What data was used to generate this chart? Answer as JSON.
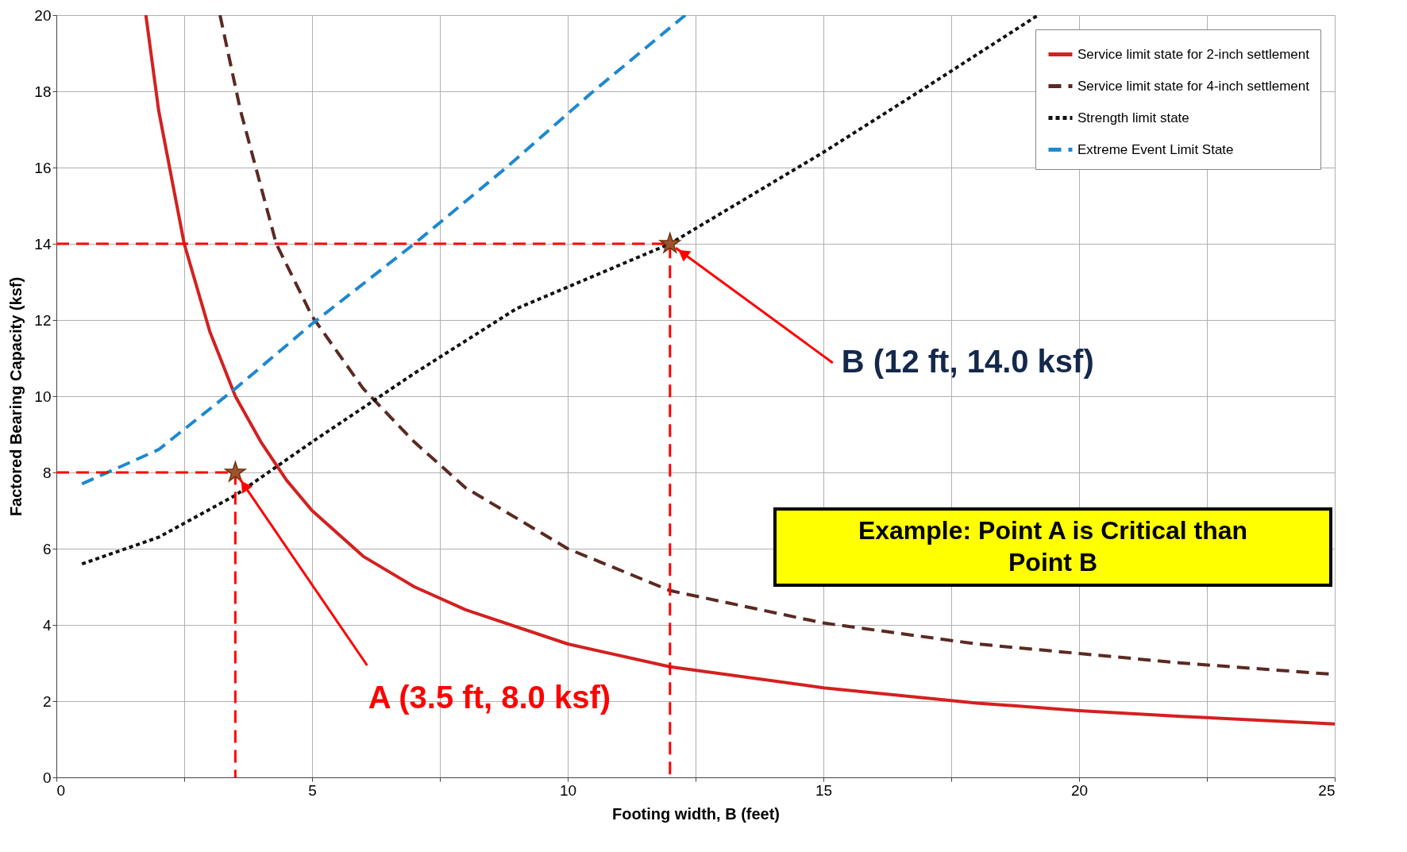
{
  "chart_data": {
    "type": "line",
    "xlabel": "Footing width, B (feet)",
    "ylabel": "Factored Bearing Capacity (ksf)",
    "xlim": [
      0,
      25
    ],
    "ylim": [
      0,
      20
    ],
    "xticks": [
      0,
      {
        "value": 2.5,
        "label": null
      },
      5,
      {
        "value": 7.5,
        "label": null
      },
      10,
      {
        "value": 12.5,
        "label": null
      },
      15,
      {
        "value": 17.5,
        "label": null
      },
      20,
      {
        "value": 22.5,
        "label": null
      },
      25
    ],
    "yticks": [
      0,
      2,
      4,
      6,
      8,
      10,
      12,
      14,
      16,
      18,
      20
    ],
    "grid": true,
    "legend": "top right",
    "series": [
      {
        "name": "Service limit state for 2-inch settlement",
        "color": "#d42020",
        "line_style": "solid",
        "x": [
          1.75,
          2,
          2.5,
          3,
          3.5,
          4,
          4.5,
          5,
          6,
          7,
          8,
          10,
          12,
          15,
          18,
          20,
          22,
          25
        ],
        "values": [
          20,
          17.5,
          14,
          11.7,
          10,
          8.8,
          7.8,
          7,
          5.8,
          5,
          4.4,
          3.5,
          2.9,
          2.35,
          1.95,
          1.75,
          1.6,
          1.4
        ]
      },
      {
        "name": "Service limit state for 4-inch settlement",
        "color": "#5a2a22",
        "line_style": "dashed",
        "x": [
          3.2,
          3.6,
          4.3,
          5,
          6,
          7,
          8,
          10,
          12,
          15,
          18,
          20,
          22,
          25
        ],
        "values": [
          20,
          17.5,
          14,
          12.1,
          10.2,
          8.8,
          7.6,
          6,
          4.9,
          4.05,
          3.5,
          3.25,
          3,
          2.7
        ]
      },
      {
        "name": "Strength limit state",
        "color": "#111111",
        "line_style": "dotted",
        "x": [
          0.5,
          2,
          3.5,
          5,
          7,
          9,
          12,
          15,
          17,
          19.2
        ],
        "values": [
          5.6,
          6.3,
          7.4,
          8.8,
          10.6,
          12.3,
          14,
          16.4,
          18.1,
          20
        ]
      },
      {
        "name": "Extreme Event Limit State",
        "color": "#1e88d0",
        "line_style": "dashed",
        "x": [
          0.5,
          2,
          3.5,
          5,
          7,
          8.8,
          10.5,
          12.3
        ],
        "values": [
          7.7,
          8.6,
          10.2,
          11.9,
          14,
          16,
          18,
          20
        ]
      },
      {
        "type": "line",
        "color": "#ff0000",
        "line_style": "dashed",
        "x": [
          0,
          3.5,
          3.5
        ],
        "values": [
          8,
          8,
          0
        ]
      },
      {
        "type": "line",
        "color": "#ff0000",
        "line_style": "dashed",
        "x": [
          0,
          12,
          12
        ],
        "values": [
          14,
          14,
          0
        ]
      },
      {
        "type": "scatter",
        "marker": "star",
        "color": "#a0522d",
        "x": [
          3.5,
          12
        ],
        "values": [
          8,
          14
        ]
      }
    ],
    "annotations": [
      {
        "text": "A (3.5 ft, 8.0 ksf)",
        "x": 3.5,
        "y": 8
      },
      {
        "text": "B (12 ft, 14.0 ksf)",
        "x": 12,
        "y": 14
      },
      "Example: Point A is Critical than Point B"
    ]
  }
}
